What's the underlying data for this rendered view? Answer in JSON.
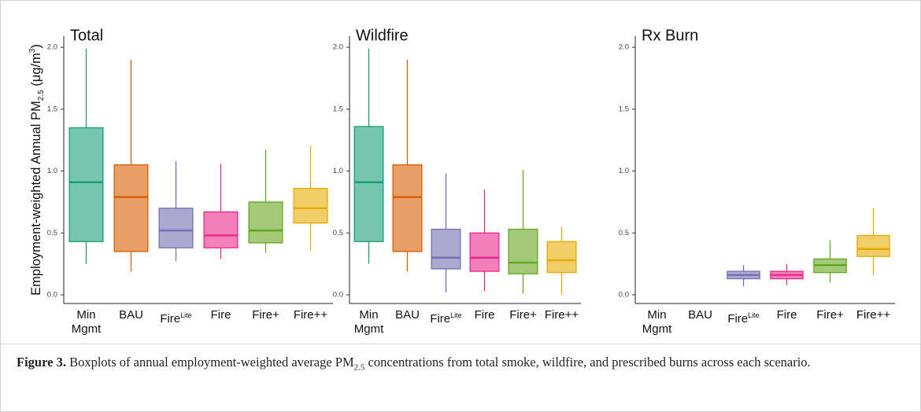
{
  "chart_data": [
    {
      "type": "box",
      "title": "Total",
      "y_label": [
        "Employment-weighted Annual PM",
        "2.5",
        " (μg/m",
        "3",
        ")"
      ],
      "categories": [
        "Min Mgmt",
        "BAU",
        "Fire",
        "Fire",
        "Fire+",
        "Fire++"
      ],
      "category_superscripts": [
        null,
        null,
        "Lite",
        null,
        null,
        null
      ],
      "colors": [
        "#1b9e77",
        "#d95f02",
        "#7570b3",
        "#e7298a",
        "#66a61e",
        "#e6ab02"
      ],
      "boxes": [
        {
          "min": 0.25,
          "q1": 0.43,
          "median": 0.91,
          "q3": 1.35,
          "max": 1.99
        },
        {
          "min": 0.19,
          "q1": 0.35,
          "median": 0.79,
          "q3": 1.05,
          "max": 1.9
        },
        {
          "min": 0.27,
          "q1": 0.38,
          "median": 0.52,
          "q3": 0.7,
          "max": 1.08
        },
        {
          "min": 0.29,
          "q1": 0.38,
          "median": 0.48,
          "q3": 0.67,
          "max": 1.06
        },
        {
          "min": 0.34,
          "q1": 0.42,
          "median": 0.52,
          "q3": 0.75,
          "max": 1.17
        },
        {
          "min": 0.36,
          "q1": 0.58,
          "median": 0.7,
          "q3": 0.86,
          "max": 1.2
        }
      ],
      "ylim": [
        -0.07,
        2.09
      ],
      "yticks": [
        {
          "value": 0,
          "label": "0.0"
        },
        0.5,
        {
          "value": 1,
          "label": "1.0"
        },
        1.5,
        {
          "value": 2,
          "label": "2.0"
        }
      ]
    },
    {
      "type": "box",
      "title": "Wildfire",
      "categories": [
        "Min Mgmt",
        "BAU",
        "Fire",
        "Fire",
        "Fire+",
        "Fire++"
      ],
      "category_superscripts": [
        null,
        null,
        "Lite",
        null,
        null,
        null
      ],
      "colors": [
        "#1b9e77",
        "#d95f02",
        "#7570b3",
        "#e7298a",
        "#66a61e",
        "#e6ab02"
      ],
      "boxes": [
        {
          "min": 0.25,
          "q1": 0.43,
          "median": 0.91,
          "q3": 1.36,
          "max": 1.99
        },
        {
          "min": 0.19,
          "q1": 0.35,
          "median": 0.79,
          "q3": 1.05,
          "max": 1.9
        },
        {
          "min": 0.02,
          "q1": 0.21,
          "median": 0.3,
          "q3": 0.53,
          "max": 0.98
        },
        {
          "min": 0.03,
          "q1": 0.19,
          "median": 0.3,
          "q3": 0.5,
          "max": 0.85
        },
        {
          "min": 0.01,
          "q1": 0.17,
          "median": 0.26,
          "q3": 0.53,
          "max": 1.01
        },
        {
          "min": 0,
          "q1": 0.18,
          "median": 0.28,
          "q3": 0.43,
          "max": 0.55
        }
      ],
      "ylim": [
        -0.07,
        2.09
      ],
      "yticks": [
        {
          "value": 0,
          "label": "0.0"
        },
        0.5,
        {
          "value": 1,
          "label": "1.0"
        },
        1.5,
        {
          "value": 2,
          "label": "2.0"
        }
      ]
    },
    {
      "type": "box",
      "title": "Rx Burn",
      "categories": [
        "Min Mgmt",
        "BAU",
        "Fire",
        "Fire",
        "Fire+",
        "Fire++"
      ],
      "category_superscripts": [
        null,
        null,
        "Lite",
        null,
        null,
        null
      ],
      "colors": [
        "#1b9e77",
        "#d95f02",
        "#7570b3",
        "#e7298a",
        "#66a61e",
        "#e6ab02"
      ],
      "boxes": [
        null,
        null,
        {
          "min": 0.07,
          "q1": 0.13,
          "median": 0.16,
          "q3": 0.19,
          "max": 0.24
        },
        {
          "min": 0.08,
          "q1": 0.13,
          "median": 0.16,
          "q3": 0.19,
          "max": 0.25
        },
        {
          "min": 0.1,
          "q1": 0.18,
          "median": 0.24,
          "q3": 0.29,
          "max": 0.44
        },
        {
          "min": 0.16,
          "q1": 0.31,
          "median": 0.37,
          "q3": 0.48,
          "max": 0.7
        }
      ],
      "ylim": [
        -0.07,
        2.09
      ],
      "yticks": [
        {
          "value": 0,
          "label": "0.0"
        },
        0.5,
        {
          "value": 1,
          "label": "1.0"
        },
        1.5,
        {
          "value": 2,
          "label": "2.0"
        }
      ]
    }
  ],
  "caption": {
    "label": "Figure 3.",
    "text": [
      " Boxplots of annual employment-weighted average PM",
      "2.5",
      " concentrations from total smoke, wildfire, and prescribed burns across each scenario."
    ]
  }
}
